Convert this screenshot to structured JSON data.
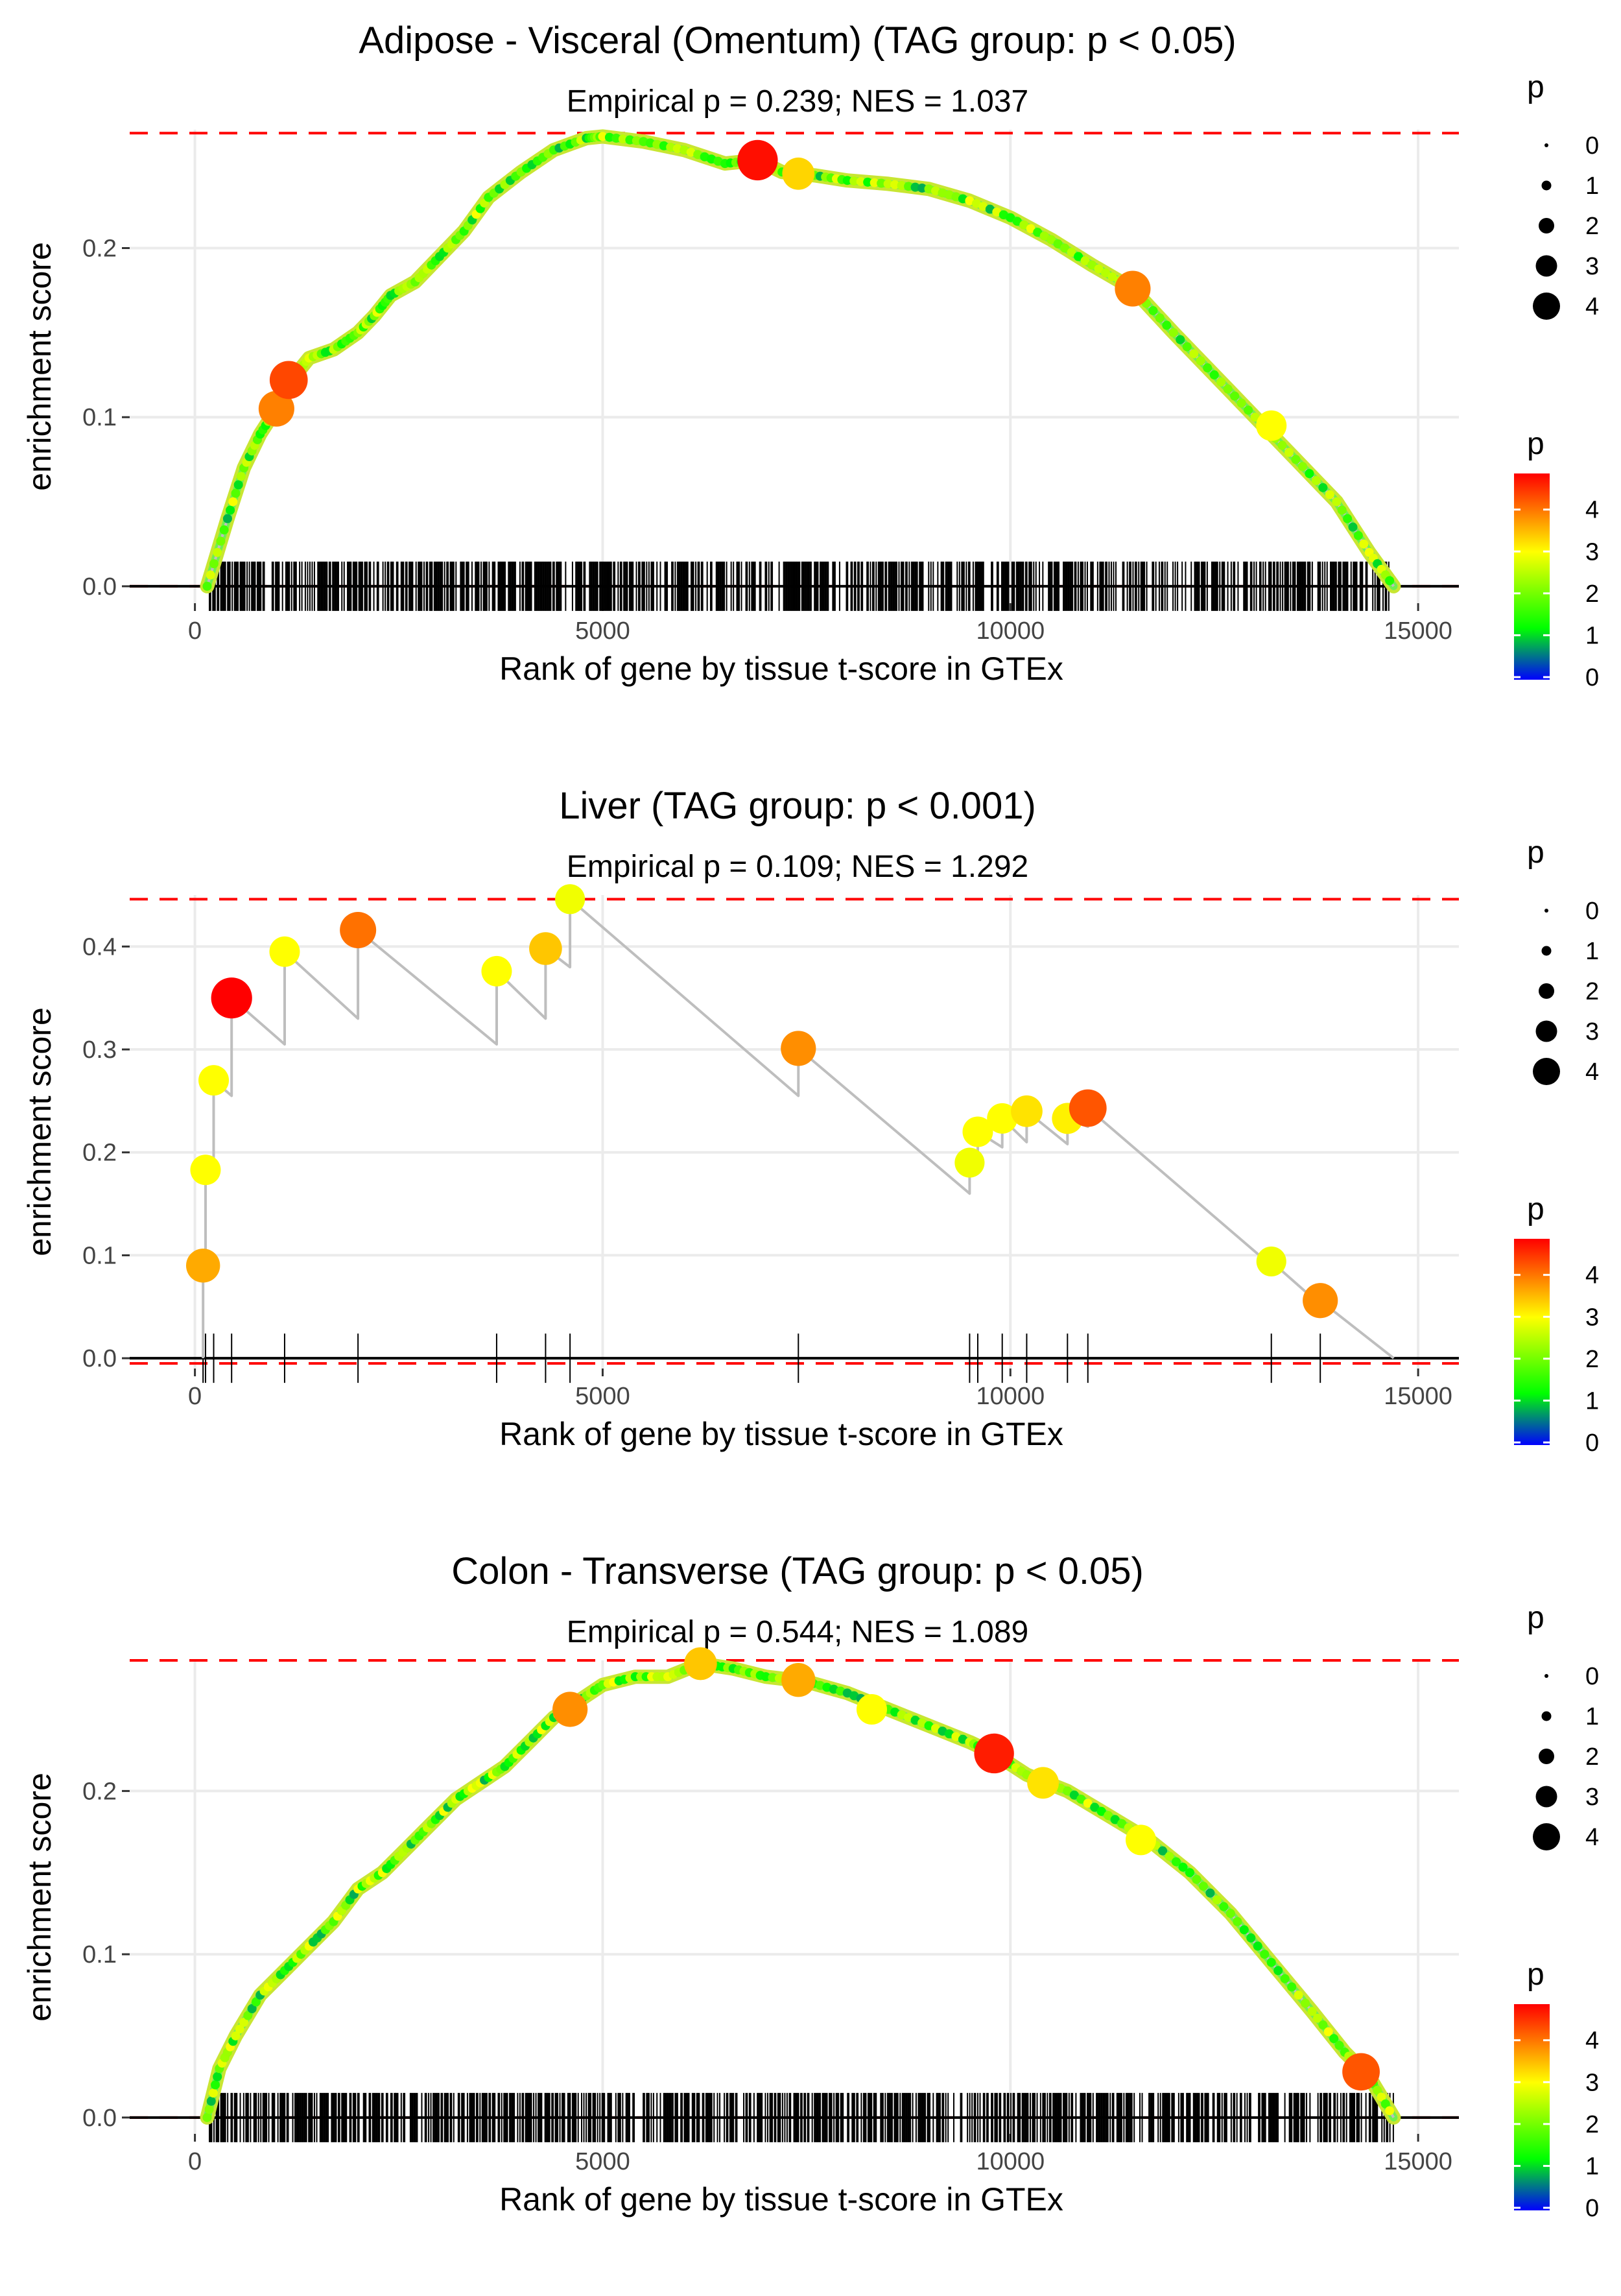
{
  "chart_data": [
    {
      "type": "line",
      "title": "Adipose - Visceral (Omentum) (TAG group: p < 0.05)",
      "subtitle": "Empirical p = 0.239; NES = 1.037",
      "xlabel": "Rank of gene by tissue t-score in GTEx",
      "ylabel": "enrichment score",
      "xlim": [
        -800,
        15500
      ],
      "ylim": [
        -0.01,
        0.27
      ],
      "xticks": [
        0,
        5000,
        10000,
        15000
      ],
      "xtick_labels": [
        "0",
        "5000",
        "10000",
        "15000"
      ],
      "yticks": [
        0.0,
        0.1,
        0.2
      ],
      "ytick_labels": [
        "0.0",
        "0.1",
        "0.2"
      ],
      "max_es": 0.268,
      "min_es": 0.0,
      "curve": [
        [
          150,
          0.0
        ],
        [
          400,
          0.04
        ],
        [
          600,
          0.07
        ],
        [
          800,
          0.09
        ],
        [
          1000,
          0.105
        ],
        [
          1200,
          0.123
        ],
        [
          1400,
          0.135
        ],
        [
          1700,
          0.14
        ],
        [
          2000,
          0.15
        ],
        [
          2200,
          0.16
        ],
        [
          2400,
          0.172
        ],
        [
          2700,
          0.18
        ],
        [
          3000,
          0.195
        ],
        [
          3300,
          0.21
        ],
        [
          3600,
          0.23
        ],
        [
          4000,
          0.245
        ],
        [
          4400,
          0.258
        ],
        [
          4800,
          0.265
        ],
        [
          5000,
          0.266
        ],
        [
          5500,
          0.263
        ],
        [
          6000,
          0.258
        ],
        [
          6500,
          0.25
        ],
        [
          6900,
          0.252
        ],
        [
          7200,
          0.245
        ],
        [
          7600,
          0.243
        ],
        [
          8000,
          0.24
        ],
        [
          8500,
          0.238
        ],
        [
          9000,
          0.235
        ],
        [
          9500,
          0.228
        ],
        [
          10000,
          0.218
        ],
        [
          10500,
          0.205
        ],
        [
          11000,
          0.19
        ],
        [
          11500,
          0.176
        ],
        [
          12000,
          0.15
        ],
        [
          12500,
          0.125
        ],
        [
          13000,
          0.1
        ],
        [
          13500,
          0.075
        ],
        [
          14000,
          0.05
        ],
        [
          14400,
          0.02
        ],
        [
          14700,
          0.0
        ]
      ],
      "points": [
        [
          1000,
          0.105,
          3.9
        ],
        [
          1150,
          0.122,
          4.3
        ],
        [
          6900,
          0.252,
          4.7
        ],
        [
          7400,
          0.244,
          3.3
        ],
        [
          11500,
          0.176,
          3.9
        ],
        [
          13200,
          0.095,
          3.0
        ]
      ],
      "hits": [],
      "hits_dense": true,
      "size_legend": {
        "title": "p",
        "values": [
          "0",
          "1",
          "2",
          "3",
          "4"
        ]
      },
      "color_legend": {
        "title": "p",
        "values": [
          "0",
          "1",
          "2",
          "3",
          "4"
        ]
      }
    },
    {
      "type": "line",
      "title": "Liver (TAG group: p < 0.001)",
      "subtitle": "Empirical p = 0.109; NES = 1.292",
      "xlabel": "Rank of gene by tissue t-score in GTEx",
      "ylabel": "enrichment score",
      "xlim": [
        -800,
        15500
      ],
      "ylim": [
        -0.01,
        0.45
      ],
      "xticks": [
        0,
        5000,
        10000,
        15000
      ],
      "xtick_labels": [
        "0",
        "5000",
        "10000",
        "15000"
      ],
      "yticks": [
        0.0,
        0.1,
        0.2,
        0.3,
        0.4
      ],
      "ytick_labels": [
        "0.0",
        "0.1",
        "0.2",
        "0.3",
        "0.4"
      ],
      "max_es": 0.446,
      "min_es": -0.005,
      "curve": [
        [
          100,
          0.0
        ],
        [
          100,
          0.09
        ],
        [
          130,
          0.085
        ],
        [
          130,
          0.183
        ],
        [
          230,
          0.175
        ],
        [
          230,
          0.27
        ],
        [
          450,
          0.255
        ],
        [
          450,
          0.35
        ],
        [
          1100,
          0.305
        ],
        [
          1100,
          0.395
        ],
        [
          2000,
          0.33
        ],
        [
          2000,
          0.416
        ],
        [
          3700,
          0.305
        ],
        [
          3700,
          0.376
        ],
        [
          4300,
          0.33
        ],
        [
          4300,
          0.398
        ],
        [
          4600,
          0.38
        ],
        [
          4600,
          0.446
        ],
        [
          7400,
          0.255
        ],
        [
          7400,
          0.301
        ],
        [
          9500,
          0.16
        ],
        [
          9500,
          0.19
        ],
        [
          9600,
          0.185
        ],
        [
          9600,
          0.22
        ],
        [
          9900,
          0.205
        ],
        [
          9900,
          0.233
        ],
        [
          10200,
          0.21
        ],
        [
          10200,
          0.24
        ],
        [
          10700,
          0.208
        ],
        [
          10700,
          0.233
        ],
        [
          10950,
          0.225
        ],
        [
          10950,
          0.243
        ],
        [
          13200,
          0.09
        ],
        [
          13200,
          0.094
        ],
        [
          13800,
          0.052
        ],
        [
          13800,
          0.056
        ],
        [
          14700,
          0.0
        ]
      ],
      "points": [
        [
          100,
          0.09,
          3.6
        ],
        [
          130,
          0.183,
          3.0
        ],
        [
          230,
          0.27,
          3.0
        ],
        [
          450,
          0.35,
          4.8
        ],
        [
          1100,
          0.395,
          3.0
        ],
        [
          2000,
          0.416,
          4.0
        ],
        [
          3700,
          0.376,
          3.0
        ],
        [
          4300,
          0.398,
          3.4
        ],
        [
          4600,
          0.446,
          2.9
        ],
        [
          7400,
          0.301,
          3.8
        ],
        [
          9500,
          0.19,
          2.9
        ],
        [
          9600,
          0.22,
          3.0
        ],
        [
          9900,
          0.233,
          3.0
        ],
        [
          10200,
          0.24,
          3.2
        ],
        [
          10700,
          0.233,
          3.1
        ],
        [
          10950,
          0.243,
          4.2
        ],
        [
          13200,
          0.094,
          2.9
        ],
        [
          13800,
          0.056,
          3.8
        ]
      ],
      "hits": [
        100,
        130,
        230,
        450,
        1100,
        2000,
        3700,
        4300,
        4600,
        7400,
        9500,
        9600,
        9900,
        10200,
        10700,
        10950,
        13200,
        13800
      ],
      "hits_dense": false,
      "size_legend": {
        "title": "p",
        "values": [
          "0",
          "1",
          "2",
          "3",
          "4"
        ]
      },
      "color_legend": {
        "title": "p",
        "values": [
          "0",
          "1",
          "2",
          "3",
          "4"
        ]
      }
    },
    {
      "type": "line",
      "title": "Colon - Transverse (TAG group: p < 0.05)",
      "subtitle": "Empirical p = 0.544; NES = 1.089",
      "xlabel": "Rank of gene by tissue t-score in GTEx",
      "ylabel": "enrichment score",
      "xlim": [
        -800,
        15500
      ],
      "ylim": [
        -0.01,
        0.28
      ],
      "xticks": [
        0,
        5000,
        10000,
        15000
      ],
      "xtick_labels": [
        "0",
        "5000",
        "10000",
        "15000"
      ],
      "yticks": [
        0.0,
        0.1,
        0.2
      ],
      "ytick_labels": [
        "0.0",
        "0.1",
        "0.2"
      ],
      "max_es": 0.28,
      "min_es": 0.0,
      "curve": [
        [
          150,
          0.0
        ],
        [
          300,
          0.03
        ],
        [
          500,
          0.05
        ],
        [
          800,
          0.075
        ],
        [
          1100,
          0.09
        ],
        [
          1400,
          0.105
        ],
        [
          1700,
          0.12
        ],
        [
          2000,
          0.14
        ],
        [
          2300,
          0.15
        ],
        [
          2600,
          0.165
        ],
        [
          2900,
          0.18
        ],
        [
          3200,
          0.195
        ],
        [
          3500,
          0.205
        ],
        [
          3800,
          0.215
        ],
        [
          4100,
          0.23
        ],
        [
          4400,
          0.245
        ],
        [
          4700,
          0.255
        ],
        [
          5000,
          0.265
        ],
        [
          5400,
          0.27
        ],
        [
          5800,
          0.27
        ],
        [
          6200,
          0.278
        ],
        [
          6600,
          0.275
        ],
        [
          7000,
          0.27
        ],
        [
          7500,
          0.267
        ],
        [
          8000,
          0.26
        ],
        [
          8500,
          0.25
        ],
        [
          9000,
          0.24
        ],
        [
          9500,
          0.23
        ],
        [
          9800,
          0.223
        ],
        [
          10200,
          0.21
        ],
        [
          10700,
          0.2
        ],
        [
          11200,
          0.185
        ],
        [
          11700,
          0.17
        ],
        [
          12200,
          0.15
        ],
        [
          12700,
          0.125
        ],
        [
          13200,
          0.095
        ],
        [
          13700,
          0.065
        ],
        [
          14100,
          0.04
        ],
        [
          14400,
          0.025
        ],
        [
          14700,
          0.0
        ]
      ],
      "points": [
        [
          4600,
          0.25,
          3.8
        ],
        [
          6200,
          0.278,
          3.4
        ],
        [
          7400,
          0.268,
          3.6
        ],
        [
          8300,
          0.25,
          3.0
        ],
        [
          9800,
          0.223,
          4.6
        ],
        [
          10400,
          0.205,
          3.2
        ],
        [
          11600,
          0.17,
          3.0
        ],
        [
          14300,
          0.028,
          4.2
        ]
      ],
      "hits": [],
      "hits_dense": true,
      "size_legend": {
        "title": "p",
        "values": [
          "0",
          "1",
          "2",
          "3",
          "4"
        ]
      },
      "color_legend": {
        "title": "p",
        "values": [
          "0",
          "1",
          "2",
          "3",
          "4"
        ]
      }
    }
  ],
  "colors": {
    "curve": "#bebebe",
    "reference_line": "#ff0000",
    "gridline": "#ebebeb",
    "colorscale": [
      "#0000ff",
      "#00ff00",
      "#ffff00",
      "#ff0000"
    ]
  }
}
